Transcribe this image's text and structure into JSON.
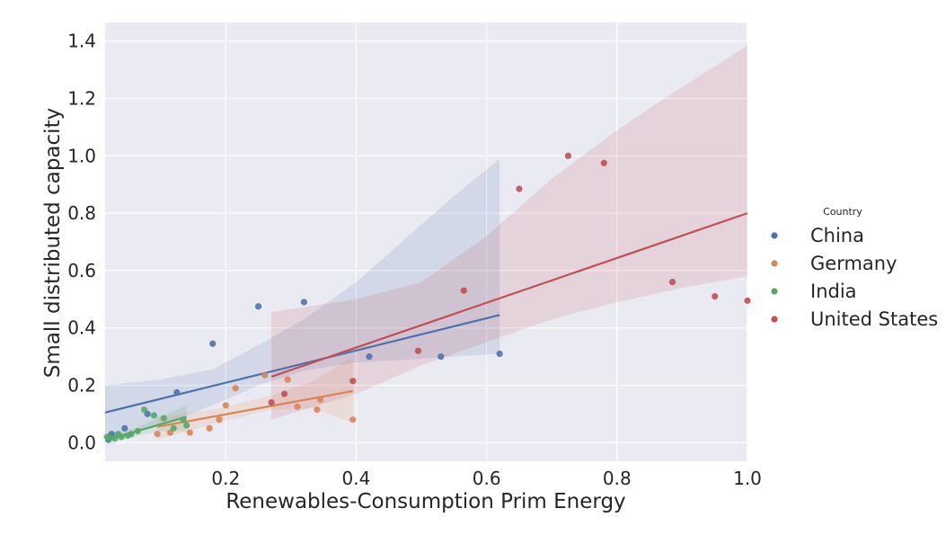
{
  "chart_data": {
    "type": "scatter",
    "title": "",
    "xlabel": "Renewables-Consumption Prim Energy",
    "ylabel": "Small distributed capacity",
    "xlim": [
      0.015,
      1.0
    ],
    "ylim": [
      -0.065,
      1.465
    ],
    "xticks": [
      0.2,
      0.4,
      0.6,
      0.8,
      1.0
    ],
    "xtick_labels": [
      "0.2",
      "0.4",
      "0.6",
      "0.8",
      "1.0"
    ],
    "yticks": [
      0.0,
      0.2,
      0.4,
      0.6,
      0.8,
      1.0,
      1.2,
      1.4
    ],
    "ytick_labels": [
      "0.0",
      "0.2",
      "0.4",
      "0.6",
      "0.8",
      "1.0",
      "1.2",
      "1.4"
    ],
    "grid": true,
    "legend": {
      "title": "Country",
      "placement": "right"
    },
    "series": [
      {
        "name": "China",
        "color": "#4c72b0",
        "points": [
          [
            0.02,
            0.01
          ],
          [
            0.025,
            0.03
          ],
          [
            0.045,
            0.05
          ],
          [
            0.08,
            0.1
          ],
          [
            0.125,
            0.175
          ],
          [
            0.18,
            0.345
          ],
          [
            0.25,
            0.475
          ],
          [
            0.32,
            0.49
          ],
          [
            0.42,
            0.3
          ],
          [
            0.53,
            0.3
          ],
          [
            0.62,
            0.31
          ]
        ],
        "fit": {
          "x0": 0.015,
          "y0": 0.105,
          "x1": 0.62,
          "y1": 0.445
        },
        "ci_upper": [
          [
            0.015,
            0.2
          ],
          [
            0.1,
            0.22
          ],
          [
            0.18,
            0.255
          ],
          [
            0.25,
            0.34
          ],
          [
            0.32,
            0.43
          ],
          [
            0.4,
            0.56
          ],
          [
            0.48,
            0.72
          ],
          [
            0.55,
            0.86
          ],
          [
            0.62,
            0.99
          ]
        ],
        "ci_lower": [
          [
            0.015,
            0.01
          ],
          [
            0.1,
            0.06
          ],
          [
            0.18,
            0.13
          ],
          [
            0.25,
            0.2
          ],
          [
            0.32,
            0.25
          ],
          [
            0.4,
            0.28
          ],
          [
            0.48,
            0.29
          ],
          [
            0.55,
            0.3
          ],
          [
            0.62,
            0.31
          ]
        ]
      },
      {
        "name": "Germany",
        "color": "#dd8452",
        "points": [
          [
            0.095,
            0.03
          ],
          [
            0.115,
            0.035
          ],
          [
            0.145,
            0.035
          ],
          [
            0.175,
            0.05
          ],
          [
            0.19,
            0.08
          ],
          [
            0.2,
            0.13
          ],
          [
            0.215,
            0.19
          ],
          [
            0.26,
            0.235
          ],
          [
            0.295,
            0.22
          ],
          [
            0.31,
            0.125
          ],
          [
            0.34,
            0.115
          ],
          [
            0.345,
            0.15
          ],
          [
            0.395,
            0.08
          ]
        ],
        "fit": {
          "x0": 0.095,
          "y0": 0.055,
          "x1": 0.395,
          "y1": 0.18
        },
        "ci_upper": [
          [
            0.095,
            0.09
          ],
          [
            0.18,
            0.115
          ],
          [
            0.27,
            0.165
          ],
          [
            0.33,
            0.21
          ],
          [
            0.395,
            0.3
          ]
        ],
        "ci_lower": [
          [
            0.095,
            0.01
          ],
          [
            0.18,
            0.065
          ],
          [
            0.27,
            0.115
          ],
          [
            0.33,
            0.12
          ],
          [
            0.395,
            0.07
          ]
        ]
      },
      {
        "name": "India",
        "color": "#55a868",
        "points": [
          [
            0.018,
            0.02
          ],
          [
            0.022,
            0.015
          ],
          [
            0.03,
            0.015
          ],
          [
            0.035,
            0.03
          ],
          [
            0.04,
            0.02
          ],
          [
            0.05,
            0.025
          ],
          [
            0.055,
            0.03
          ],
          [
            0.065,
            0.04
          ],
          [
            0.075,
            0.115
          ],
          [
            0.09,
            0.095
          ],
          [
            0.105,
            0.085
          ],
          [
            0.12,
            0.05
          ],
          [
            0.135,
            0.08
          ],
          [
            0.14,
            0.06
          ]
        ],
        "fit": {
          "x0": 0.018,
          "y0": 0.01,
          "x1": 0.14,
          "y1": 0.09
        },
        "ci_upper": [
          [
            0.018,
            0.03
          ],
          [
            0.06,
            0.05
          ],
          [
            0.1,
            0.09
          ],
          [
            0.14,
            0.13
          ]
        ],
        "ci_lower": [
          [
            0.018,
            -0.005
          ],
          [
            0.06,
            0.02
          ],
          [
            0.1,
            0.04
          ],
          [
            0.14,
            0.04
          ]
        ]
      },
      {
        "name": "United States",
        "color": "#c44e52",
        "points": [
          [
            0.27,
            0.14
          ],
          [
            0.29,
            0.17
          ],
          [
            0.395,
            0.215
          ],
          [
            0.495,
            0.32
          ],
          [
            0.565,
            0.53
          ],
          [
            0.65,
            0.885
          ],
          [
            0.725,
            1.0
          ],
          [
            0.78,
            0.975
          ],
          [
            0.885,
            0.56
          ],
          [
            0.95,
            0.51
          ],
          [
            1.0,
            0.495
          ]
        ],
        "fit": {
          "x0": 0.27,
          "y0": 0.23,
          "x1": 1.0,
          "y1": 0.8
        },
        "ci_upper": [
          [
            0.27,
            0.455
          ],
          [
            0.4,
            0.5
          ],
          [
            0.5,
            0.56
          ],
          [
            0.6,
            0.72
          ],
          [
            0.7,
            0.92
          ],
          [
            0.8,
            1.09
          ],
          [
            0.9,
            1.24
          ],
          [
            1.0,
            1.385
          ]
        ],
        "ci_lower": [
          [
            0.27,
            0.08
          ],
          [
            0.4,
            0.17
          ],
          [
            0.5,
            0.27
          ],
          [
            0.6,
            0.35
          ],
          [
            0.7,
            0.43
          ],
          [
            0.8,
            0.49
          ],
          [
            0.9,
            0.54
          ],
          [
            1.0,
            0.58
          ]
        ]
      }
    ]
  }
}
